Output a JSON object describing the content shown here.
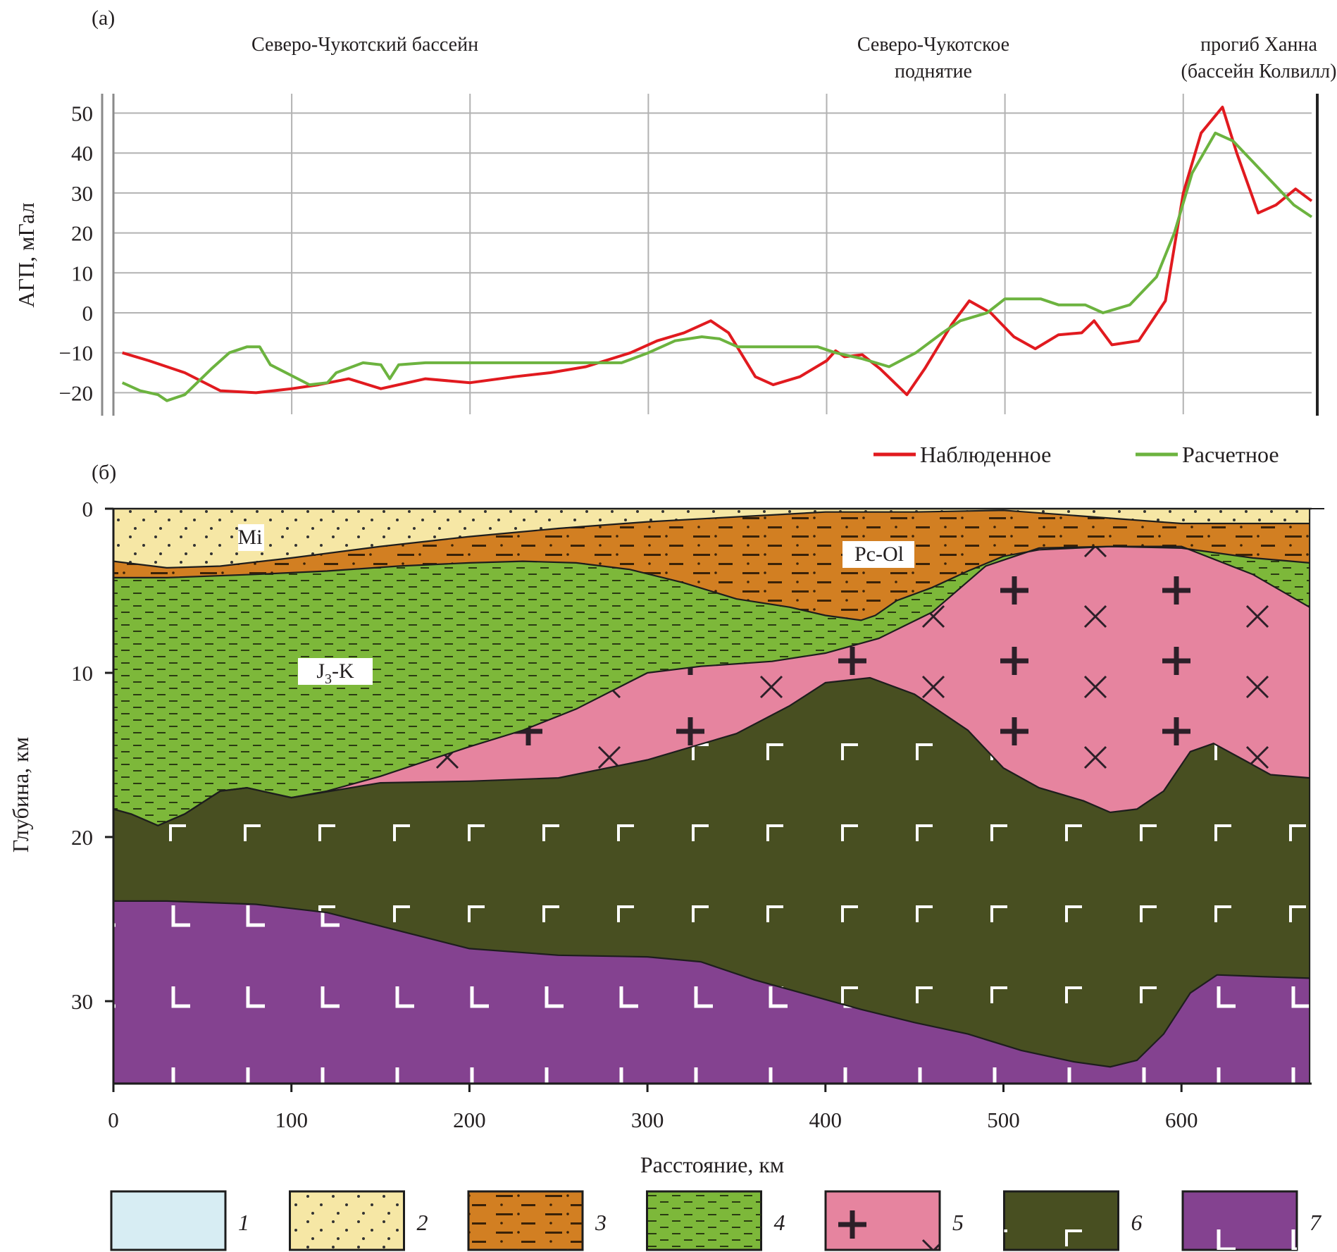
{
  "panel_a": {
    "label": "(a)",
    "regions": [
      {
        "lines": [
          "Северо-Чукотский бассейн",
          ""
        ]
      },
      {
        "lines": [
          "Северо-Чукотское",
          "поднятие"
        ]
      },
      {
        "lines": [
          "прогиб Ханна",
          "(бассейн Колвилл)"
        ]
      }
    ]
  },
  "panel_b": {
    "label": "(б)",
    "units": [
      {
        "name": "Mi",
        "sub": "",
        "rest": ""
      },
      {
        "name": "Pc-Ol",
        "sub": "",
        "rest": ""
      },
      {
        "name": "J",
        "sub": "3",
        "rest": "-K"
      }
    ]
  },
  "legend_items": [
    {
      "num": "1",
      "color": "#d7edf3",
      "pattern": "none"
    },
    {
      "num": "2",
      "color": "#f6e7a5",
      "pattern": "dots"
    },
    {
      "num": "3",
      "color": "#d27f22",
      "pattern": "dashdot"
    },
    {
      "num": "4",
      "color": "#7db83a",
      "pattern": "dash"
    },
    {
      "num": "5",
      "color": "#e6849f",
      "pattern": "crossx"
    },
    {
      "num": "6",
      "color": "#484f21",
      "pattern": "gamma"
    },
    {
      "num": "7",
      "color": "#844290",
      "pattern": "ell"
    }
  ],
  "chart_data": [
    {
      "type": "line",
      "title": "",
      "xlabel": "",
      "ylabel": "АГП, мГал",
      "xlim": [
        0,
        672
      ],
      "ylim": [
        -22,
        55
      ],
      "x_gridlines": [
        0,
        100,
        200,
        300,
        400,
        500,
        600
      ],
      "yticks": [
        -20,
        -10,
        0,
        10,
        20,
        30,
        40,
        50
      ],
      "ytick_labels": [
        "−20",
        "−10",
        "0",
        "10",
        "20",
        "30",
        "40",
        "50"
      ],
      "grid": true,
      "legend_position": "bottom-right",
      "series": [
        {
          "name": "Наблюденное",
          "color": "#e11a1f",
          "points": [
            [
              5,
              -10
            ],
            [
              20,
              -12
            ],
            [
              40,
              -15
            ],
            [
              60,
              -19.5
            ],
            [
              80,
              -20
            ],
            [
              100,
              -19
            ],
            [
              115,
              -18
            ],
            [
              132,
              -16.5
            ],
            [
              150,
              -19
            ],
            [
              175,
              -16.5
            ],
            [
              200,
              -17.5
            ],
            [
              225,
              -16
            ],
            [
              245,
              -15
            ],
            [
              265,
              -13.5
            ],
            [
              290,
              -10
            ],
            [
              305,
              -7
            ],
            [
              320,
              -5
            ],
            [
              335,
              -2
            ],
            [
              345,
              -5
            ],
            [
              360,
              -16
            ],
            [
              370,
              -18
            ],
            [
              385,
              -16
            ],
            [
              400,
              -12
            ],
            [
              405,
              -9.5
            ],
            [
              410,
              -11
            ],
            [
              420,
              -10.5
            ],
            [
              430,
              -14
            ],
            [
              445,
              -20.5
            ],
            [
              455,
              -14
            ],
            [
              470,
              -3
            ],
            [
              480,
              3
            ],
            [
              492,
              0
            ],
            [
              505,
              -6
            ],
            [
              517,
              -9
            ],
            [
              530,
              -5.5
            ],
            [
              543,
              -5
            ],
            [
              550,
              -2
            ],
            [
              560,
              -8
            ],
            [
              575,
              -7
            ],
            [
              590,
              3
            ],
            [
              600,
              30
            ],
            [
              610,
              45
            ],
            [
              622,
              51.5
            ],
            [
              630,
              40
            ],
            [
              642,
              25
            ],
            [
              652,
              27
            ],
            [
              663,
              31
            ],
            [
              672,
              28
            ]
          ]
        },
        {
          "name": "Расчетное",
          "color": "#6cb33f",
          "points": [
            [
              5,
              -17.5
            ],
            [
              15,
              -19.5
            ],
            [
              25,
              -20.5
            ],
            [
              30,
              -22
            ],
            [
              40,
              -20.5
            ],
            [
              55,
              -14
            ],
            [
              65,
              -10
            ],
            [
              75,
              -8.5
            ],
            [
              82,
              -8.5
            ],
            [
              88,
              -13
            ],
            [
              110,
              -18
            ],
            [
              120,
              -17.5
            ],
            [
              125,
              -15
            ],
            [
              140,
              -12.5
            ],
            [
              150,
              -13
            ],
            [
              155,
              -16.5
            ],
            [
              160,
              -13
            ],
            [
              175,
              -12.5
            ],
            [
              200,
              -12.5
            ],
            [
              250,
              -12.5
            ],
            [
              285,
              -12.5
            ],
            [
              300,
              -10
            ],
            [
              315,
              -7
            ],
            [
              330,
              -6
            ],
            [
              340,
              -6.5
            ],
            [
              350,
              -8.5
            ],
            [
              380,
              -8.5
            ],
            [
              395,
              -8.5
            ],
            [
              405,
              -10
            ],
            [
              420,
              -11.5
            ],
            [
              435,
              -13.5
            ],
            [
              450,
              -10
            ],
            [
              465,
              -5
            ],
            [
              475,
              -2
            ],
            [
              490,
              0
            ],
            [
              500,
              3.5
            ],
            [
              520,
              3.5
            ],
            [
              530,
              2
            ],
            [
              545,
              2
            ],
            [
              555,
              0
            ],
            [
              570,
              2
            ],
            [
              585,
              9
            ],
            [
              595,
              20
            ],
            [
              605,
              35
            ],
            [
              618,
              45
            ],
            [
              628,
              43
            ],
            [
              645,
              35
            ],
            [
              662,
              27
            ],
            [
              672,
              24
            ]
          ]
        }
      ]
    },
    {
      "type": "area",
      "title": "",
      "xlabel": "Расстояние, км",
      "ylabel": "Глубина, км",
      "xlim": [
        0,
        672
      ],
      "ylim": [
        35,
        0
      ],
      "xticks": [
        0,
        100,
        200,
        300,
        400,
        500,
        600
      ],
      "yticks": [
        0,
        10,
        20,
        30
      ],
      "grid": false,
      "layers_bottom_depth_km": [
        {
          "unit": "2",
          "points": [
            [
              0,
              3.2
            ],
            [
              30,
              3.6
            ],
            [
              60,
              3.5
            ],
            [
              100,
              3.0
            ],
            [
              150,
              2.3
            ],
            [
              200,
              1.7
            ],
            [
              250,
              1.2
            ],
            [
              300,
              0.8
            ],
            [
              350,
              0.5
            ],
            [
              400,
              0.2
            ],
            [
              450,
              0.2
            ],
            [
              500,
              0.1
            ],
            [
              550,
              0.5
            ],
            [
              600,
              0.9
            ],
            [
              640,
              0.9
            ],
            [
              672,
              0.9
            ]
          ]
        },
        {
          "unit": "3",
          "points": [
            [
              0,
              4.2
            ],
            [
              30,
              4.2
            ],
            [
              80,
              4.0
            ],
            [
              120,
              3.8
            ],
            [
              160,
              3.5
            ],
            [
              200,
              3.3
            ],
            [
              230,
              3.2
            ],
            [
              260,
              3.3
            ],
            [
              290,
              3.7
            ],
            [
              320,
              4.5
            ],
            [
              350,
              5.5
            ],
            [
              380,
              6.0
            ],
            [
              400,
              6.5
            ],
            [
              420,
              6.8
            ],
            [
              428,
              6.5
            ],
            [
              440,
              5.6
            ],
            [
              460,
              4.8
            ],
            [
              480,
              3.8
            ],
            [
              500,
              2.9
            ],
            [
              520,
              2.5
            ],
            [
              560,
              2.3
            ],
            [
              600,
              2.4
            ],
            [
              640,
              3.0
            ],
            [
              672,
              3.3
            ]
          ]
        },
        {
          "unit": "4",
          "points": [
            [
              0,
              18.3
            ],
            [
              10,
              18.6
            ],
            [
              25,
              19.3
            ],
            [
              40,
              18.6
            ],
            [
              60,
              17.2
            ],
            [
              75,
              17.0
            ],
            [
              100,
              17.6
            ],
            [
              120,
              17.2
            ],
            [
              150,
              16.3
            ],
            [
              200,
              14.5
            ],
            [
              230,
              13.5
            ],
            [
              260,
              12.2
            ],
            [
              300,
              10.0
            ],
            [
              330,
              9.6
            ],
            [
              370,
              9.3
            ],
            [
              400,
              8.8
            ],
            [
              430,
              7.9
            ],
            [
              460,
              6.3
            ],
            [
              490,
              3.5
            ],
            [
              520,
              2.4
            ],
            [
              560,
              2.3
            ],
            [
              600,
              2.3
            ],
            [
              640,
              4.0
            ],
            [
              672,
              6.0
            ]
          ]
        },
        {
          "unit": "5",
          "points": [
            [
              0,
              18.3
            ],
            [
              10,
              18.6
            ],
            [
              25,
              19.3
            ],
            [
              40,
              18.6
            ],
            [
              60,
              17.2
            ],
            [
              75,
              17.0
            ],
            [
              100,
              17.6
            ],
            [
              150,
              16.7
            ],
            [
              200,
              16.6
            ],
            [
              250,
              16.4
            ],
            [
              300,
              15.3
            ],
            [
              350,
              13.7
            ],
            [
              380,
              12.0
            ],
            [
              400,
              10.6
            ],
            [
              425,
              10.3
            ],
            [
              450,
              11.3
            ],
            [
              480,
              13.5
            ],
            [
              500,
              15.8
            ],
            [
              520,
              17.0
            ],
            [
              545,
              17.8
            ],
            [
              560,
              18.5
            ],
            [
              575,
              18.3
            ],
            [
              590,
              17.2
            ],
            [
              605,
              14.8
            ],
            [
              618,
              14.3
            ],
            [
              635,
              15.3
            ],
            [
              650,
              16.2
            ],
            [
              672,
              16.4
            ]
          ]
        },
        {
          "unit": "6",
          "points": [
            [
              0,
              23.9
            ],
            [
              30,
              23.9
            ],
            [
              80,
              24.1
            ],
            [
              120,
              24.6
            ],
            [
              160,
              25.7
            ],
            [
              200,
              26.8
            ],
            [
              250,
              27.2
            ],
            [
              300,
              27.3
            ],
            [
              330,
              27.6
            ],
            [
              360,
              28.7
            ],
            [
              390,
              29.6
            ],
            [
              420,
              30.5
            ],
            [
              450,
              31.3
            ],
            [
              480,
              32.0
            ],
            [
              510,
              33.0
            ],
            [
              540,
              33.7
            ],
            [
              560,
              34.0
            ],
            [
              575,
              33.6
            ],
            [
              590,
              32.0
            ],
            [
              605,
              29.5
            ],
            [
              620,
              28.4
            ],
            [
              645,
              28.5
            ],
            [
              672,
              28.6
            ]
          ]
        },
        {
          "unit": "7",
          "points": [
            [
              0,
              35
            ],
            [
              672,
              35
            ]
          ]
        }
      ]
    }
  ]
}
